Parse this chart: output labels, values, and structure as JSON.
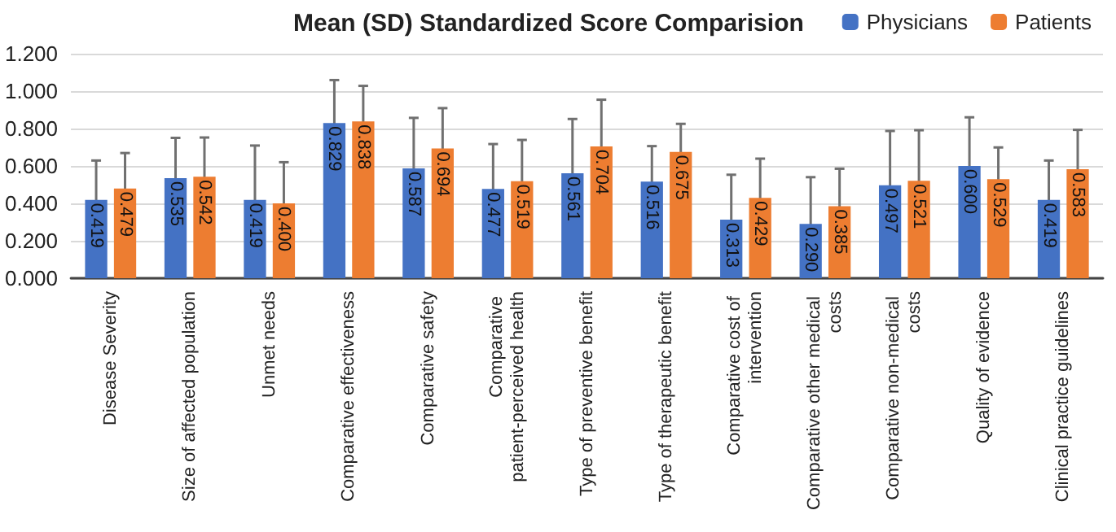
{
  "chart_data": {
    "type": "bar",
    "title": "Mean (SD) Standardized Score Comparision",
    "categories": [
      "Disease Severity",
      "Size of affected population",
      "Unmet needs",
      "Comparative effectiveness",
      "Comparative safety",
      "Comparative patient-perceived health",
      "Type of preventive benefit",
      "Type of therapeutic benefit",
      "Comparative cost of intervention",
      "Comparative other medical costs",
      "Comparative non-medical costs",
      "Quality of evidence",
      "Clinical practice guidelines"
    ],
    "series": [
      {
        "name": "Physicians",
        "color": "#4472c4",
        "values": [
          0.419,
          0.535,
          0.419,
          0.829,
          0.587,
          0.477,
          0.561,
          0.516,
          0.313,
          0.29,
          0.497,
          0.6,
          0.419
        ],
        "value_labels": [
          "0.419",
          "0.535",
          "0.419",
          "0.829",
          "0.587",
          "0.477",
          "0.561",
          "0.516",
          "0.313",
          "0.290",
          "0.497",
          "0.600",
          "0.419"
        ],
        "errors": [
          0.21,
          0.215,
          0.29,
          0.23,
          0.27,
          0.24,
          0.29,
          0.19,
          0.24,
          0.25,
          0.29,
          0.26,
          0.21
        ]
      },
      {
        "name": "Patients",
        "color": "#ed7d31",
        "values": [
          0.479,
          0.542,
          0.4,
          0.838,
          0.694,
          0.519,
          0.704,
          0.675,
          0.429,
          0.385,
          0.521,
          0.529,
          0.583
        ],
        "value_labels": [
          "0.479",
          "0.542",
          "0.400",
          "0.838",
          "0.694",
          "0.519",
          "0.704",
          "0.675",
          "0.429",
          "0.385",
          "0.521",
          "0.529",
          "0.583"
        ],
        "errors": [
          0.19,
          0.21,
          0.22,
          0.19,
          0.215,
          0.22,
          0.25,
          0.15,
          0.21,
          0.2,
          0.27,
          0.17,
          0.21
        ]
      }
    ],
    "ylim": [
      0,
      1.2
    ],
    "yticks": [
      {
        "value": 0,
        "label": "0.000"
      },
      {
        "value": 0.2,
        "label": "0.200"
      },
      {
        "value": 0.4,
        "label": "0.400"
      },
      {
        "value": 0.6,
        "label": "0.600"
      },
      {
        "value": 0.8,
        "label": "0.800"
      },
      {
        "value": 1,
        "label": "1.000"
      },
      {
        "value": 1.2,
        "label": "1.200"
      }
    ],
    "grid": "y",
    "legend": "top right"
  }
}
